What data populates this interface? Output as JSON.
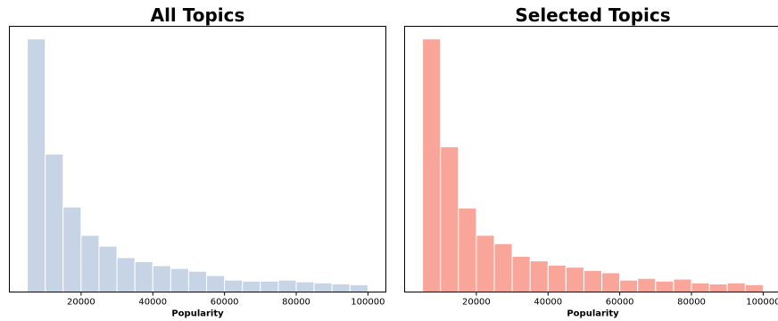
{
  "chart_data": [
    {
      "type": "bar",
      "title": "All Topics",
      "xlabel": "Popularity",
      "ylabel": "",
      "color": "#c6d4e6",
      "edge_color": "#ffffff",
      "bin_edges": [
        5000,
        10000,
        15000,
        20000,
        25000,
        30000,
        35000,
        40000,
        45000,
        50000,
        55000,
        60000,
        65000,
        70000,
        75000,
        80000,
        85000,
        90000,
        95000,
        100000
      ],
      "values": [
        100,
        54.5,
        33.6,
        22.4,
        18.1,
        13.6,
        12.0,
        10.4,
        9.3,
        8.2,
        6.5,
        4.7,
        4.3,
        4.3,
        4.7,
        4.0,
        3.6,
        3.2,
        2.9
      ],
      "xticks": [
        20000,
        40000,
        60000,
        80000,
        100000
      ],
      "xlim": [
        0,
        105000
      ],
      "ylim": [
        0,
        105
      ],
      "y_ticks_shown": false
    },
    {
      "type": "bar",
      "title": "Selected Topics",
      "xlabel": "Popularity",
      "ylabel": "",
      "color": "#f9a59a",
      "edge_color": "#ffffff",
      "bin_edges": [
        5000,
        10000,
        15000,
        20000,
        25000,
        30000,
        35000,
        40000,
        45000,
        50000,
        55000,
        60000,
        65000,
        70000,
        75000,
        80000,
        85000,
        90000,
        95000,
        100000
      ],
      "values": [
        100,
        57.4,
        33.2,
        22.4,
        19.1,
        14.1,
        12.3,
        10.6,
        9.8,
        8.5,
        7.6,
        4.7,
        5.4,
        4.3,
        5.1,
        3.6,
        3.2,
        3.6,
        2.9
      ],
      "xticks": [
        20000,
        40000,
        60000,
        80000,
        100000
      ],
      "xlim": [
        0,
        105000
      ],
      "ylim": [
        0,
        105
      ],
      "y_ticks_shown": false
    }
  ]
}
